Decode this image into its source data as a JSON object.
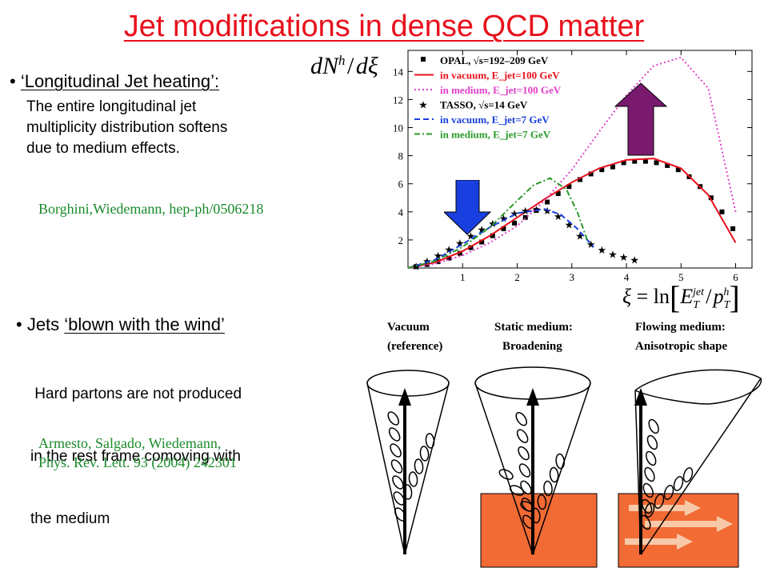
{
  "title": "Jet modifications in dense QCD matter",
  "section1": {
    "bullet_prefix": "• ",
    "heading": "‘Longitudinal Jet heating’:",
    "lines": [
      "The entire longitudinal jet",
      "multiplicity distribution softens",
      "due to medium effects."
    ],
    "reference": "Borghini,Wiedemann, hep-ph/0506218"
  },
  "section2": {
    "bullet_prefix": "• Jets ",
    "heading": "‘blown with the wind’",
    "lines": [
      " Hard partons are not produced",
      "in the rest frame comoving with",
      "the medium"
    ],
    "reference_lines": [
      "Armesto, Salgado, Wiedemann,",
      "Phys. Rev. Lett. 93 (2004) 242301"
    ]
  },
  "ylabel_formula": "dN^h / dξ",
  "xlabel_formula": "ξ = ln[E_T^jet / p_T^h]",
  "colors": {
    "title": "#e8101c",
    "ref": "#1a8a2a",
    "down_arrow": "#1a3fe0",
    "up_arrow": "#7a1a6e",
    "medium_block": "#f26a34"
  },
  "chart_data": {
    "type": "line",
    "xlim": [
      0,
      6.3
    ],
    "ylim": [
      0,
      15.5
    ],
    "x_ticks": [
      1,
      2,
      3,
      4,
      5,
      6
    ],
    "y_ticks": [
      2,
      4,
      6,
      8,
      10,
      12,
      14
    ],
    "x_tick_labels": [
      "1",
      "2",
      "3",
      "4",
      "5",
      "6"
    ],
    "y_tick_labels": [
      "2",
      "4",
      "6",
      "8",
      "10",
      "12",
      "14"
    ],
    "legend_position": "top-left",
    "series": [
      {
        "name": "OPAL, √s=192–209 GeV",
        "style": "square",
        "color": "#000000",
        "x": [
          0.15,
          0.35,
          0.55,
          0.75,
          0.95,
          1.15,
          1.35,
          1.55,
          1.75,
          1.95,
          2.15,
          2.35,
          2.55,
          2.75,
          2.95,
          3.15,
          3.35,
          3.55,
          3.75,
          3.95,
          4.15,
          4.35,
          4.55,
          4.75,
          4.95,
          5.15,
          5.35,
          5.55,
          5.75,
          5.95
        ],
        "y": [
          0.1,
          0.25,
          0.45,
          0.7,
          1.05,
          1.45,
          1.85,
          2.3,
          2.8,
          3.2,
          3.6,
          4.1,
          4.7,
          5.3,
          5.8,
          6.3,
          6.7,
          7.0,
          7.2,
          7.5,
          7.6,
          7.6,
          7.5,
          7.3,
          7.0,
          6.5,
          5.8,
          5.0,
          4.0,
          2.8
        ]
      },
      {
        "name": "in vacuum, E_jet=100 GeV",
        "style": "solid",
        "color": "#e8101c",
        "x": [
          0,
          0.5,
          1,
          1.5,
          2,
          2.5,
          3,
          3.5,
          4,
          4.5,
          5,
          5.5,
          6
        ],
        "y": [
          0,
          0.4,
          1.2,
          2.3,
          3.6,
          4.9,
          6.1,
          7.1,
          7.7,
          7.8,
          7.1,
          5.2,
          1.8
        ]
      },
      {
        "name": "in medium, E_jet=100 GeV",
        "style": "dotted",
        "color": "#e040c8",
        "x": [
          0,
          0.5,
          1,
          1.5,
          2,
          2.5,
          3,
          3.5,
          4,
          4.5,
          5,
          5.5,
          6
        ],
        "y": [
          0,
          0.3,
          0.9,
          1.8,
          3.0,
          4.8,
          7.0,
          9.7,
          12.3,
          14.4,
          15.0,
          12.8,
          4.0
        ]
      },
      {
        "name": "TASSO, √s=14 GeV",
        "style": "star",
        "color": "#000000",
        "x": [
          0.15,
          0.35,
          0.55,
          0.75,
          0.95,
          1.15,
          1.35,
          1.55,
          1.75,
          1.95,
          2.15,
          2.35,
          2.55,
          2.75,
          2.95,
          3.15,
          3.35,
          3.55,
          3.75,
          3.95,
          4.15
        ],
        "y": [
          0.15,
          0.5,
          0.9,
          1.35,
          1.8,
          2.3,
          2.75,
          3.2,
          3.55,
          3.9,
          4.1,
          4.2,
          4.1,
          3.7,
          3.1,
          2.3,
          1.7,
          1.3,
          1.0,
          0.8,
          0.6
        ]
      },
      {
        "name": "in vacuum, E_jet=7 GeV",
        "style": "dashed",
        "color": "#1a3fe0",
        "x": [
          0,
          0.5,
          1,
          1.5,
          2,
          2.5,
          2.8,
          3.1,
          3.4
        ],
        "y": [
          0,
          0.6,
          1.7,
          2.9,
          3.9,
          4.2,
          3.8,
          2.8,
          1.5
        ]
      },
      {
        "name": "in medium, E_jet=7 GeV",
        "style": "dashdot",
        "color": "#2a9a2a",
        "x": [
          0,
          0.5,
          1,
          1.5,
          2,
          2.3,
          2.6,
          2.9,
          3.1,
          3.3
        ],
        "y": [
          0,
          0.5,
          1.5,
          2.9,
          4.8,
          5.9,
          6.4,
          5.6,
          4.0,
          1.8
        ]
      }
    ]
  },
  "diagram": {
    "columns": [
      {
        "title": "Vacuum",
        "subtitle": "(reference)"
      },
      {
        "title": "Static medium:",
        "subtitle": "Broadening"
      },
      {
        "title": "Flowing medium:",
        "subtitle": "Anisotropic shape"
      }
    ]
  }
}
